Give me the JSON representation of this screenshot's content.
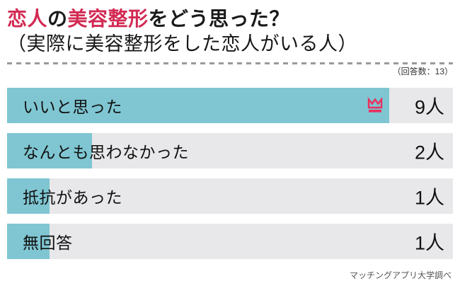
{
  "header": {
    "title_segments": [
      {
        "text": "恋人",
        "accent": true
      },
      {
        "text": "の",
        "accent": false
      },
      {
        "text": "美容整形",
        "accent": true
      },
      {
        "text": "をどう思った？",
        "accent": false
      }
    ],
    "subtitle": "（実際に美容整形をした恋人がいる人）",
    "response_count_label": "（回答数：13）"
  },
  "chart_data": {
    "type": "bar",
    "orientation": "horizontal",
    "title": "恋人の美容整形をどう思った？",
    "subtitle": "（実際に美容整形をした恋人がいる人）",
    "response_count": 13,
    "unit": "人",
    "categories": [
      "いいと思った",
      "なんとも思わなかった",
      "抵抗があった",
      "無回答"
    ],
    "values": [
      9,
      2,
      1,
      1
    ],
    "value_labels": [
      "9人",
      "2人",
      "1人",
      "1人"
    ],
    "top_answer_index": 0,
    "top_answer_marker": "crown-icon",
    "xlim": [
      0,
      10.5
    ],
    "grid": false,
    "legend": false
  },
  "footer": {
    "source": "マッチングアプリ大学調べ"
  },
  "colors": {
    "accent": "#d22a53",
    "crown": "#e8305f",
    "bar": "#7fc6d2",
    "row_background": "#e8e8ea",
    "dashed_divider": "#9a9a9a"
  }
}
